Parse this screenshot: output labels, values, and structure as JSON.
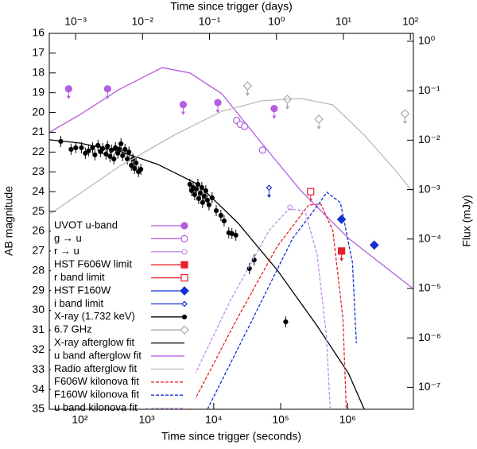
{
  "chart_data": {
    "type": "scatter",
    "xlabel": "Time since trigger (seconds)",
    "x2label": "Time since trigger (days)",
    "ylabel": "AB magnitude",
    "y2label": "Flux (mJy)",
    "xlog": true,
    "x2log": true,
    "y2log": true,
    "grid": false,
    "xlim": [
      35,
      9600000
    ],
    "xticks": [
      {
        "value": 100,
        "label": "10²"
      },
      {
        "value": 1000,
        "label": "10³"
      },
      {
        "value": 10000,
        "label": "10⁴"
      },
      {
        "value": 100000,
        "label": "10⁵"
      },
      {
        "value": 1000000,
        "label": "10⁶"
      }
    ],
    "x2lim": [
      0.000405,
      111
    ],
    "x2ticks": [
      {
        "value": 0.001,
        "label": "10⁻³"
      },
      {
        "value": 0.01,
        "label": "10⁻²"
      },
      {
        "value": 0.1,
        "label": "10⁻¹"
      },
      {
        "value": 1,
        "label": "10⁰"
      },
      {
        "value": 10,
        "label": "10¹"
      },
      {
        "value": 100,
        "label": "10²"
      }
    ],
    "ylim": [
      35,
      16
    ],
    "yticks": [
      16,
      17,
      18,
      19,
      20,
      21,
      22,
      23,
      24,
      25,
      26,
      27,
      28,
      29,
      30,
      31,
      32,
      33,
      34,
      35
    ],
    "y2lim": [
      3.6e-08,
      1.445
    ],
    "y2ticks": [
      {
        "value": 1,
        "label": "10⁰"
      },
      {
        "value": 0.1,
        "label": "10⁻¹"
      },
      {
        "value": 0.01,
        "label": "10⁻²"
      },
      {
        "value": 0.001,
        "label": "10⁻³"
      },
      {
        "value": 0.0001,
        "label": "10⁻⁴"
      },
      {
        "value": 1e-05,
        "label": "10⁻⁵"
      },
      {
        "value": 1e-06,
        "label": "10⁻⁶"
      },
      {
        "value": 1e-07,
        "label": "10⁻⁷"
      }
    ],
    "series": [
      {
        "name": "UVOT u-band",
        "color": "#b35de3",
        "style": "points",
        "marker": "circle",
        "filled": true,
        "upper_limit": true,
        "x": [
          68,
          260,
          3500,
          11500,
          80000
        ],
        "y": [
          18.8,
          18.8,
          19.6,
          19.5,
          19.8
        ]
      },
      {
        "name": "g → u",
        "color": "#b35de3",
        "style": "points",
        "marker": "circle",
        "filled": false,
        "upper_limit": false,
        "x": [
          22000,
          25000,
          28800,
          53700
        ],
        "y": [
          20.4,
          20.6,
          20.7,
          21.9
        ]
      },
      {
        "name": "r → u",
        "color": "#c890e8",
        "style": "points",
        "marker": "smallcircle",
        "filled": false,
        "upper_limit": false,
        "x": [
          138000
        ],
        "y": [
          24.8
        ]
      },
      {
        "name": "HST F606W limit",
        "color": "#e8202a",
        "style": "points",
        "marker": "square",
        "filled": true,
        "upper_limit": true,
        "x": [
          810000
        ],
        "y": [
          27.0
        ]
      },
      {
        "name": "r band limit",
        "color": "#e8202a",
        "style": "points",
        "marker": "square",
        "filled": false,
        "upper_limit": true,
        "x": [
          280000
        ],
        "y": [
          24.0
        ]
      },
      {
        "name": "HST F160W",
        "color": "#1530d0",
        "style": "points",
        "marker": "diamond",
        "filled": true,
        "upper_limit": false,
        "x": [
          810000,
          2500000
        ],
        "y": [
          25.4,
          26.7
        ]
      },
      {
        "name": "i band limit",
        "color": "#1530d0",
        "style": "points",
        "marker": "smalldiamond",
        "filled": false,
        "upper_limit": true,
        "x": [
          67000
        ],
        "y": [
          23.8
        ]
      },
      {
        "name": "X-ray (1.732 keV)",
        "color": "#000000",
        "style": "points",
        "marker": "dot",
        "filled": true,
        "upper_limit": false,
        "x": [
          52,
          74,
          87,
          106,
          121,
          135,
          155,
          168,
          187,
          203,
          220,
          246,
          259,
          282,
          297,
          323,
          341,
          370,
          391,
          412,
          436,
          473,
          513,
          542,
          588,
          621,
          656,
          692,
          751,
          815,
          4400,
          4670,
          4930,
          5200,
          5500,
          5800,
          5960,
          6300,
          6640,
          6820,
          7200,
          7620,
          8040,
          8500,
          9460,
          10900,
          12800,
          14300,
          16800,
          18700,
          21400,
          40200,
          34100,
          119000
        ],
        "y": [
          21.46,
          21.86,
          21.78,
          21.78,
          22.06,
          21.94,
          21.78,
          22.14,
          21.66,
          21.98,
          21.82,
          22.1,
          21.7,
          22.22,
          21.9,
          22.35,
          21.78,
          22.06,
          21.86,
          21.58,
          22.18,
          21.86,
          22.35,
          22.0,
          22.67,
          22.35,
          22.83,
          22.55,
          22.99,
          22.87,
          23.63,
          23.95,
          23.79,
          24.15,
          23.87,
          23.63,
          24.35,
          24.07,
          23.79,
          24.55,
          24.23,
          23.95,
          24.43,
          24.67,
          24.31,
          24.96,
          25.2,
          25.48,
          26.08,
          26.12,
          26.2,
          27.45,
          27.89,
          30.58
        ]
      },
      {
        "name": "6.7 GHz",
        "color": "#aaaaaa",
        "style": "points",
        "marker": "diamond",
        "filled": false,
        "upper_limit": true,
        "x": [
          32000,
          126000,
          372000,
          7200000
        ],
        "y": [
          18.65,
          19.33,
          20.34,
          20.06
        ]
      },
      {
        "name": "X-ray afterglow fit",
        "color": "#000000",
        "style": "line",
        "x": [
          35,
          97,
          380,
          1480,
          5800,
          22700,
          89000,
          349000,
          1030000,
          1770000
        ],
        "y": [
          21.38,
          21.54,
          21.94,
          22.63,
          23.63,
          25.56,
          27.97,
          30.78,
          33.19,
          35.0
        ]
      },
      {
        "name": "u band afterglow fit",
        "color": "#b35de3",
        "style": "line",
        "x": [
          35,
          97,
          380,
          1700,
          4400,
          13200,
          51600,
          200000,
          1030000,
          9100000
        ],
        "y": [
          21.0,
          20.14,
          18.85,
          17.73,
          18.0,
          19.05,
          21.54,
          23.95,
          26.36,
          28.85
        ]
      },
      {
        "name": "Radio afterglow fit",
        "color": "#bbbbbb",
        "style": "line",
        "x": [
          35,
          380,
          2570,
          13200,
          51600,
          200000,
          600000,
          1770000,
          5250000,
          9100000
        ],
        "y": [
          25.16,
          22.75,
          21.14,
          19.94,
          19.41,
          19.29,
          19.61,
          21.14,
          22.95,
          23.95
        ]
      },
      {
        "name": "F606W kilonova fit",
        "color": "#e8202a",
        "style": "dashed",
        "x": [
          4400,
          22700,
          89000,
          263000,
          398000,
          600000,
          850000,
          955000
        ],
        "y": [
          35,
          30.38,
          26.76,
          24.67,
          24.63,
          25.96,
          30.38,
          35
        ]
      },
      {
        "name": "F160W kilonova fit",
        "color": "#1530d0",
        "style": "dashed",
        "x": [
          8040,
          39000,
          151000,
          349000,
          490000,
          780000,
          1180000,
          1350000
        ],
        "y": [
          35,
          30.38,
          26.36,
          24.75,
          24.03,
          24.55,
          27.57,
          31.66
        ]
      },
      {
        "name": "u band kilonova fit",
        "color": "#c58de8",
        "style": "dashed",
        "x": [
          2950,
          17300,
          67000,
          132000,
          229000,
          349000,
          479000,
          550000
        ],
        "y": [
          35,
          29.57,
          25.96,
          24.88,
          24.96,
          27.17,
          31.18,
          35
        ]
      }
    ]
  }
}
